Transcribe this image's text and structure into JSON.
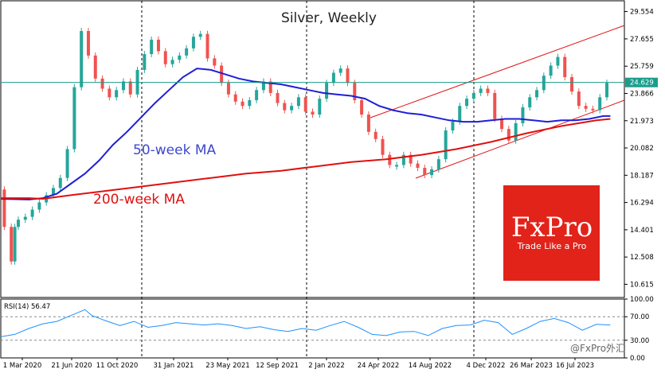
{
  "chart_data": [
    {
      "type": "line",
      "title": "Silver, Weekly",
      "y_ticks": [
        "29.554",
        "27.655",
        "25.759",
        "23.866",
        "21.973",
        "20.082",
        "18.187",
        "16.294",
        "14.401",
        "12.508",
        "10.615"
      ],
      "y_range": [
        9.7,
        30.3
      ],
      "x_ticks": [
        "1 Mar 2020",
        "21 Jun 2020",
        "11 Oct 2020",
        "31 Jan 2021",
        "23 May 2021",
        "12 Sep 2021",
        "2 Jan 2022",
        "24 Apr 2022",
        "14 Aug 2022",
        "4 Dec 2022",
        "26 Mar 2023",
        "16 Jul 2023"
      ],
      "x_range": [
        0,
        178
      ],
      "current_price": 24.629,
      "current_price_label": "24.629",
      "series": [
        {
          "name": "Silver price",
          "color": "#26a69a",
          "x": [
            0,
            2,
            3,
            4,
            6,
            8,
            10,
            12,
            14,
            16,
            18,
            20,
            22,
            24,
            26,
            28,
            30,
            32,
            34,
            36,
            38,
            40,
            42,
            44,
            46,
            48,
            50,
            52,
            54,
            56,
            58,
            60,
            62,
            64,
            66,
            68,
            70,
            72,
            74,
            76,
            78,
            80,
            82,
            84,
            86,
            88,
            90,
            92,
            94,
            96,
            98,
            100,
            102,
            104,
            106,
            108,
            110,
            112,
            114,
            116,
            118,
            120,
            122,
            124,
            126,
            128,
            130,
            132,
            134,
            136,
            138,
            140,
            142,
            144,
            146,
            148,
            150,
            152,
            154,
            156,
            158,
            160,
            162,
            164,
            166,
            168,
            170,
            172,
            174
          ],
          "values": [
            17.2,
            14.6,
            12.2,
            14.6,
            15.1,
            15.3,
            15.8,
            16.3,
            16.8,
            17.3,
            18.0,
            20.0,
            24.3,
            28.2,
            26.5,
            24.9,
            24.2,
            23.6,
            24.1,
            24.7,
            23.8,
            25.5,
            26.6,
            27.6,
            26.8,
            25.9,
            26.2,
            26.5,
            27.0,
            27.8,
            28.0,
            26.3,
            25.8,
            24.6,
            23.8,
            23.3,
            23.0,
            23.4,
            24.1,
            24.7,
            23.9,
            23.2,
            22.7,
            23.0,
            23.6,
            22.6,
            22.4,
            23.5,
            24.6,
            25.3,
            25.6,
            24.6,
            23.4,
            22.4,
            21.2,
            20.7,
            19.6,
            18.9,
            18.9,
            19.6,
            19.0,
            18.7,
            18.2,
            18.6,
            19.3,
            21.3,
            21.9,
            23.0,
            23.5,
            23.9,
            24.2,
            23.9,
            22.1,
            21.4,
            20.6,
            21.8,
            22.9,
            23.6,
            24.1,
            25.1,
            25.8,
            26.4,
            25.0,
            24.0,
            23.0,
            22.8,
            22.7,
            23.6,
            24.6
          ]
        },
        {
          "name": "50-week MA",
          "color": "#1f1fd6",
          "x": [
            0,
            8,
            12,
            16,
            20,
            24,
            28,
            32,
            36,
            40,
            44,
            48,
            52,
            56,
            60,
            64,
            68,
            72,
            76,
            80,
            84,
            88,
            92,
            96,
            100,
            104,
            108,
            112,
            116,
            120,
            124,
            128,
            132,
            136,
            140,
            144,
            148,
            152,
            156,
            160,
            164,
            168,
            172,
            174
          ],
          "values": [
            16.55,
            16.5,
            16.6,
            16.9,
            17.6,
            18.3,
            19.2,
            20.3,
            21.2,
            22.2,
            23.2,
            24.1,
            25.0,
            25.6,
            25.5,
            25.2,
            24.9,
            24.7,
            24.6,
            24.5,
            24.3,
            24.1,
            23.9,
            23.8,
            23.7,
            23.5,
            23.0,
            22.7,
            22.5,
            22.4,
            22.2,
            22.0,
            21.9,
            21.9,
            22.0,
            22.1,
            22.1,
            22.0,
            21.9,
            22.0,
            22.0,
            22.1,
            22.3,
            22.3
          ]
        },
        {
          "name": "200-week MA",
          "color": "#e01010",
          "x": [
            0,
            8,
            12,
            20,
            30,
            40,
            50,
            60,
            70,
            80,
            90,
            100,
            110,
            120,
            130,
            140,
            150,
            160,
            170,
            174
          ],
          "values": [
            16.6,
            16.6,
            16.55,
            16.8,
            17.1,
            17.4,
            17.7,
            18.0,
            18.3,
            18.5,
            18.8,
            19.1,
            19.3,
            19.6,
            20.0,
            20.5,
            21.1,
            21.6,
            22.0,
            22.1
          ]
        }
      ],
      "annotations": [
        {
          "text": "50-week MA",
          "color": "#3f48cc"
        },
        {
          "text": "200-week MA",
          "color": "#e01010"
        }
      ]
    },
    {
      "type": "line",
      "title": "RSI(14) 56.47",
      "y_ticks": [
        "100.00",
        "70.00",
        "30.00",
        "0.00"
      ],
      "y_range": [
        0,
        100
      ],
      "levels": [
        30,
        70
      ],
      "series": [
        {
          "name": "RSI(14)",
          "color": "#1e90ff",
          "x": [
            0,
            4,
            8,
            12,
            16,
            20,
            24,
            26,
            30,
            34,
            38,
            42,
            46,
            50,
            54,
            58,
            62,
            66,
            70,
            74,
            78,
            82,
            86,
            90,
            94,
            98,
            102,
            106,
            110,
            114,
            118,
            122,
            126,
            130,
            134,
            138,
            142,
            146,
            150,
            154,
            158,
            162,
            166,
            170,
            174
          ],
          "values": [
            36,
            40,
            50,
            58,
            62,
            72,
            82,
            72,
            63,
            55,
            62,
            52,
            55,
            60,
            58,
            56,
            58,
            55,
            50,
            53,
            48,
            45,
            50,
            47,
            55,
            62,
            52,
            40,
            38,
            44,
            45,
            38,
            50,
            55,
            56,
            64,
            60,
            40,
            50,
            62,
            67,
            60,
            47,
            57,
            56
          ]
        }
      ]
    }
  ],
  "branding": {
    "logo_name": "FxPro",
    "logo_tagline": "Trade Like a Pro",
    "logo_color": "#e2231a",
    "watermark": "@FxPro外汇"
  }
}
